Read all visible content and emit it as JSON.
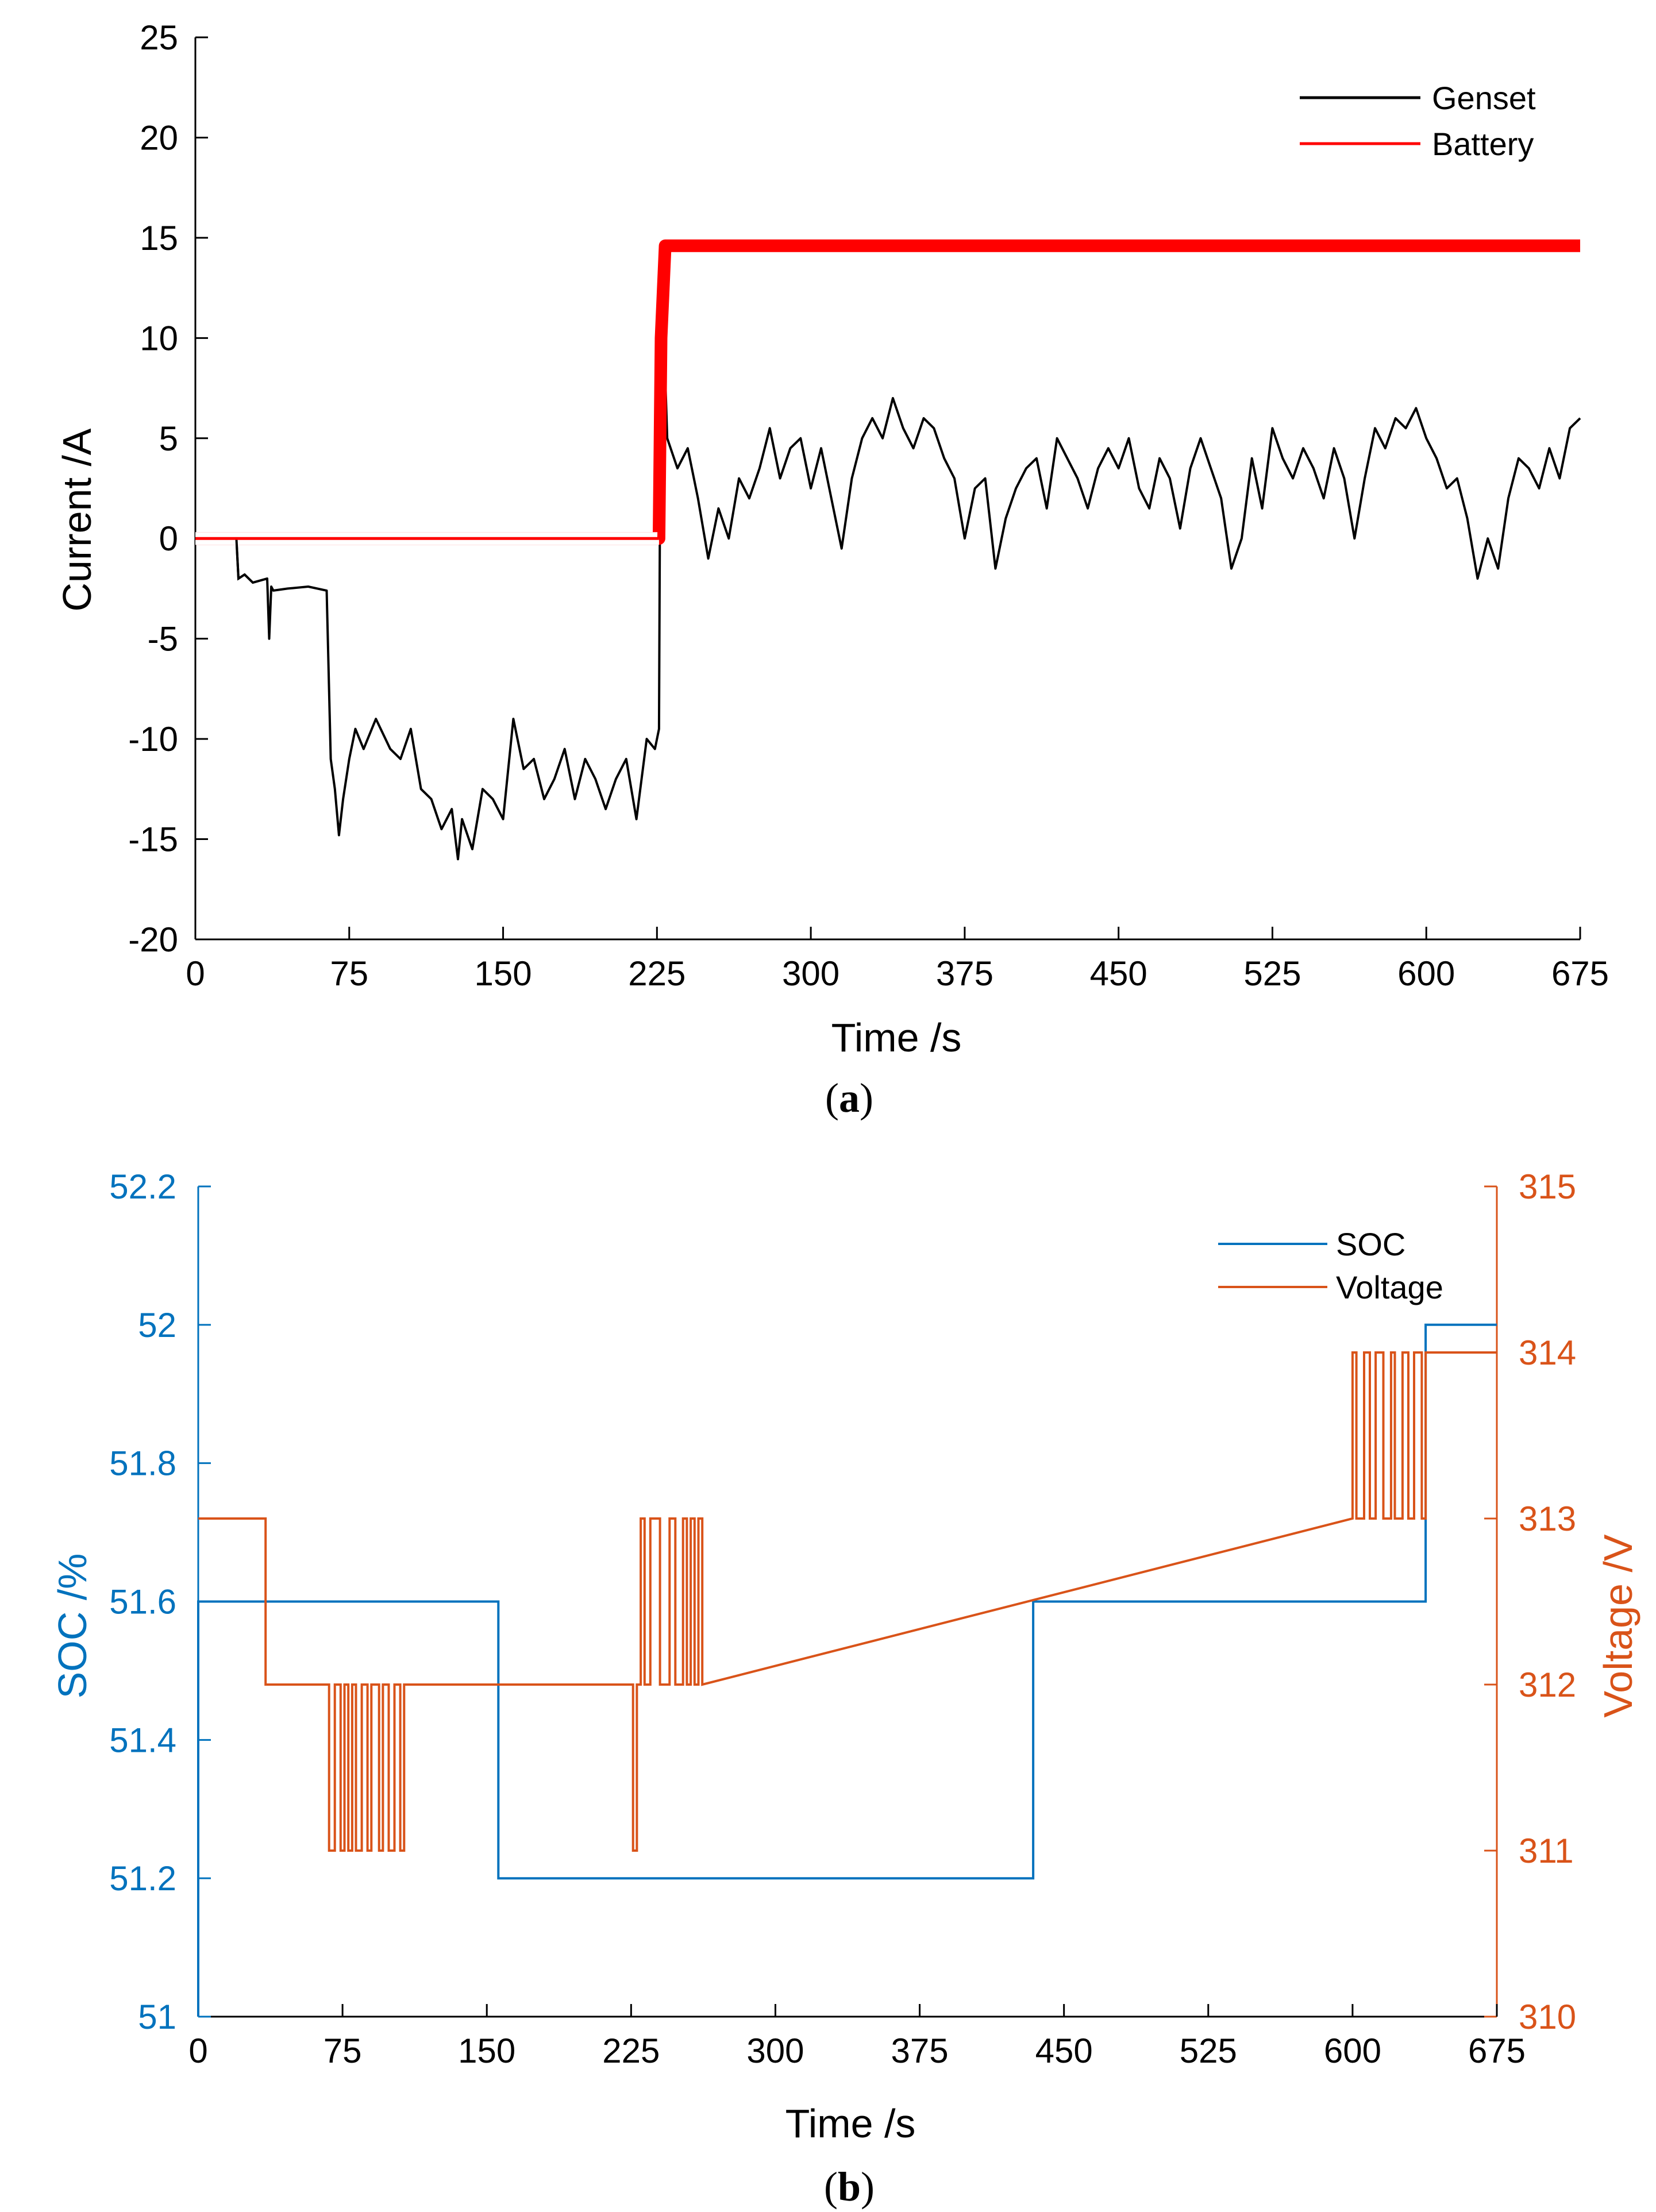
{
  "colors": {
    "genset": "#000000",
    "battery": "#ff0000",
    "soc": "#0072bd",
    "voltage": "#d95319"
  },
  "chart_data": [
    {
      "type": "line",
      "panel": "a",
      "caption": "a",
      "xlabel": "Time /s",
      "ylabel": "Current /A",
      "xlim": [
        0,
        675
      ],
      "ylim": [
        -20,
        25
      ],
      "xticks": [
        0,
        75,
        150,
        225,
        300,
        375,
        450,
        525,
        600,
        675
      ],
      "yticks": [
        -20,
        -15,
        -10,
        -5,
        0,
        5,
        10,
        15,
        20,
        25
      ],
      "legend_position": "top-right",
      "series": [
        {
          "name": "Genset",
          "color": "#000000",
          "x": [
            0,
            20,
            21,
            24,
            28,
            35,
            36,
            37,
            38,
            45,
            55,
            64,
            66,
            68,
            70,
            72,
            75,
            78,
            82,
            88,
            95,
            100,
            105,
            110,
            115,
            120,
            125,
            128,
            130,
            135,
            140,
            145,
            150,
            155,
            160,
            165,
            170,
            175,
            180,
            185,
            190,
            195,
            200,
            205,
            210,
            215,
            220,
            224,
            226,
            227,
            230,
            235,
            240,
            245,
            250,
            255,
            260,
            265,
            270,
            275,
            280,
            285,
            290,
            295,
            300,
            305,
            310,
            315,
            320,
            325,
            330,
            335,
            340,
            345,
            350,
            355,
            360,
            365,
            370,
            375,
            380,
            385,
            390,
            395,
            400,
            405,
            410,
            415,
            420,
            425,
            430,
            435,
            440,
            445,
            450,
            455,
            460,
            465,
            470,
            475,
            480,
            485,
            490,
            495,
            500,
            505,
            510,
            515,
            520,
            525,
            530,
            535,
            540,
            545,
            550,
            555,
            560,
            565,
            570,
            575,
            580,
            585,
            590,
            595,
            600,
            605,
            610,
            615,
            620,
            625,
            630,
            635,
            640,
            645,
            650,
            655,
            660,
            665,
            670,
            675
          ],
          "y": [
            0,
            0,
            -2,
            -1.8,
            -2.2,
            -2,
            -5,
            -2.4,
            -2.6,
            -2.5,
            -2.4,
            -2.6,
            -11,
            -12.5,
            -14.8,
            -13,
            -11,
            -9.5,
            -10.5,
            -9,
            -10.5,
            -11,
            -9.5,
            -12.5,
            -13,
            -14.5,
            -13.5,
            -16,
            -14,
            -15.5,
            -12.5,
            -13,
            -14,
            -9,
            -11.5,
            -11,
            -13,
            -12,
            -10.5,
            -13,
            -11,
            -12,
            -13.5,
            -12,
            -11,
            -14,
            -10,
            -10.5,
            -9.5,
            14.5,
            5,
            3.5,
            4.5,
            2,
            -1,
            1.5,
            0,
            3,
            2,
            3.5,
            5.5,
            3,
            4.5,
            5,
            2.5,
            4.5,
            2,
            -0.5,
            3,
            5,
            6,
            5,
            7,
            5.5,
            4.5,
            6,
            5.5,
            4,
            3,
            0,
            2.5,
            3,
            -1.5,
            1,
            2.5,
            3.5,
            4,
            1.5,
            5,
            4,
            3,
            1.5,
            3.5,
            4.5,
            3.5,
            5,
            2.5,
            1.5,
            4,
            3,
            0.5,
            3.5,
            5,
            3.5,
            2,
            -1.5,
            0,
            4,
            1.5,
            5.5,
            4,
            3,
            4.5,
            3.5,
            2,
            4.5,
            3,
            0,
            3,
            5.5,
            4.5,
            6,
            5.5,
            6.5,
            5,
            4,
            2.5,
            3,
            1,
            -2,
            0,
            -1.5,
            2,
            4,
            3.5,
            2.5,
            4.5,
            3,
            5.5,
            6
          ]
        },
        {
          "name": "Battery",
          "color": "#ff0000",
          "x": [
            0,
            226,
            227,
            229,
            675
          ],
          "y": [
            0,
            0,
            10,
            14.6,
            14.6
          ]
        }
      ]
    },
    {
      "type": "line",
      "panel": "b",
      "caption": "b",
      "xlabel": "Time /s",
      "ylabel_left": "SOC /%",
      "ylabel_right": "Voltage /V",
      "xlim": [
        0,
        675
      ],
      "ylim_left": [
        51,
        52.2
      ],
      "ylim_right": [
        310,
        315
      ],
      "xticks": [
        0,
        75,
        150,
        225,
        300,
        375,
        450,
        525,
        600,
        675
      ],
      "yticks_left": [
        "51",
        "51.2",
        "51.4",
        "51.6",
        "51.8",
        "52",
        "52.2"
      ],
      "yticks_right": [
        "310",
        "311",
        "312",
        "313",
        "314",
        "315"
      ],
      "legend_position": "top-right",
      "series": [
        {
          "name": "SOC",
          "axis": "left",
          "color": "#0072bd",
          "step": true,
          "x": [
            0,
            0,
            156,
            156,
            434,
            434,
            638,
            638,
            675
          ],
          "y": [
            51,
            51.6,
            51.6,
            51.2,
            51.2,
            51.6,
            51.6,
            52,
            52
          ]
        },
        {
          "name": "Voltage",
          "axis": "right",
          "color": "#d95319",
          "step": true,
          "x": [
            0,
            35,
            35,
            68,
            68,
            71,
            71,
            74,
            74,
            76,
            76,
            78,
            78,
            80,
            80,
            82,
            82,
            85,
            85,
            88,
            88,
            90,
            90,
            94,
            94,
            96,
            96,
            99,
            99,
            102,
            102,
            105,
            105,
            107,
            107,
            226,
            226,
            228,
            228,
            230,
            230,
            232,
            232,
            235,
            235,
            240,
            240,
            245,
            245,
            248,
            248,
            252,
            252,
            254,
            254,
            256,
            256,
            258,
            258,
            260,
            260,
            262,
            262,
            600,
            600,
            602,
            602,
            606,
            606,
            609,
            609,
            612,
            612,
            616,
            616,
            620,
            620,
            622,
            622,
            626,
            626,
            629,
            629,
            632,
            632,
            636,
            636,
            638,
            638,
            675
          ],
          "y": [
            313,
            313,
            312,
            312,
            311,
            311,
            312,
            312,
            311,
            311,
            312,
            312,
            311,
            311,
            312,
            312,
            311,
            311,
            312,
            312,
            311,
            311,
            312,
            312,
            311,
            311,
            312,
            312,
            311,
            311,
            312,
            312,
            311,
            311,
            312,
            312,
            311,
            311,
            312,
            312,
            313,
            313,
            312,
            312,
            313,
            313,
            312,
            312,
            313,
            313,
            312,
            312,
            313,
            313,
            312,
            312,
            313,
            313,
            312,
            312,
            313,
            313,
            312,
            313,
            314,
            314,
            313,
            313,
            314,
            314,
            313,
            313,
            314,
            314,
            313,
            313,
            314,
            314,
            313,
            313,
            314,
            314,
            313,
            313,
            314,
            314,
            313,
            313,
            314,
            314
          ]
        }
      ]
    }
  ]
}
